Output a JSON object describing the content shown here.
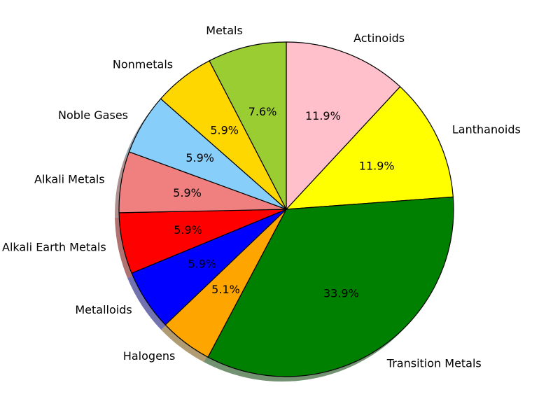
{
  "chart_data": {
    "type": "pie",
    "title": "",
    "start_angle_deg": 90,
    "direction": "clockwise",
    "shadow": true,
    "slice_edge_color": "#000000",
    "slices": [
      {
        "label": "Actinoids",
        "value": 11.9,
        "pct_label": "11.9%",
        "color": "#ffc0cb"
      },
      {
        "label": "Lanthanoids",
        "value": 11.9,
        "pct_label": "11.9%",
        "color": "#ffff00"
      },
      {
        "label": "Transition Metals",
        "value": 33.9,
        "pct_label": "33.9%",
        "color": "#008000"
      },
      {
        "label": "Halogens",
        "value": 5.1,
        "pct_label": "5.1%",
        "color": "#ffa500"
      },
      {
        "label": "Metalloids",
        "value": 5.9,
        "pct_label": "5.9%",
        "color": "#0000ff"
      },
      {
        "label": "Alkali Earth Metals",
        "value": 5.9,
        "pct_label": "5.9%",
        "color": "#ff0000"
      },
      {
        "label": "Alkali Metals",
        "value": 5.9,
        "pct_label": "5.9%",
        "color": "#f08080"
      },
      {
        "label": "Noble Gases",
        "value": 5.9,
        "pct_label": "5.9%",
        "color": "#87cefa"
      },
      {
        "label": "Nonmetals",
        "value": 5.9,
        "pct_label": "5.9%",
        "color": "#ffd700"
      },
      {
        "label": "Metals",
        "value": 7.6,
        "pct_label": "7.6%",
        "color": "#9acd32"
      }
    ]
  }
}
